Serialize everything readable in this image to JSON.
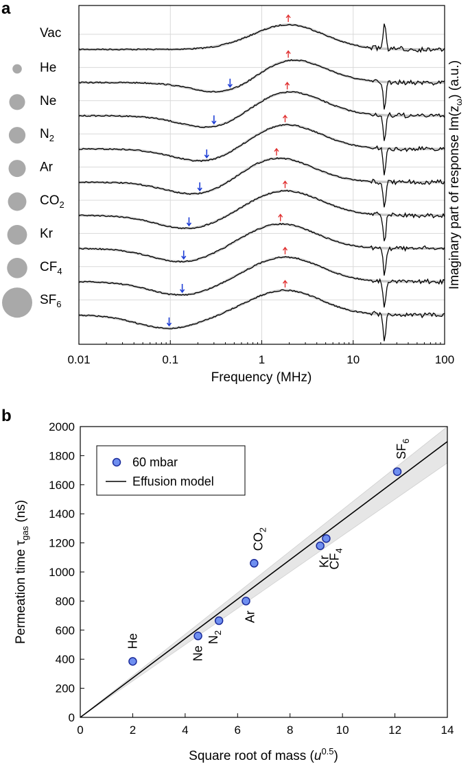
{
  "panel_a": {
    "letter": "a",
    "xlabel": "Frequency (MHz)",
    "ylabel_prefix": "Imaginary part of  response Im(z",
    "ylabel_sub": "ω",
    "ylabel_suffix": ") (a.u.)"
  },
  "panel_b": {
    "letter": "b",
    "xlabel_prefix": "Square root of mass (",
    "xlabel_unit": "u",
    "xlabel_exp": "0.5",
    "xlabel_suffix": ")",
    "ylabel_prefix": "Permeation time τ",
    "ylabel_sub": "gas",
    "ylabel_suffix": " (ns)",
    "legend": {
      "points": "60 mbar",
      "line": "Effusion model"
    }
  },
  "colors": {
    "trace": "#000000",
    "fit": "#c8c8c8",
    "blue_arrow": "#1f3fd6",
    "red_arrow": "#e03030",
    "marker_fill": "#6f8ff0",
    "marker_edge": "#1a2a9a",
    "circle": "#a9a9a9",
    "band": "#e6e6e6",
    "grid": "#d9d9d9"
  },
  "chart_data": [
    {
      "type": "line",
      "title": "",
      "xlabel": "Frequency (MHz)",
      "ylabel": "Imaginary part of response Im(z_ω) (a.u.)",
      "xscale": "log",
      "xlim": [
        0.01,
        100
      ],
      "xticks": [
        "0.01",
        "0.1",
        "1",
        "10",
        "100"
      ],
      "grid": true,
      "series": [
        {
          "name": "Vac",
          "label_main": "Vac",
          "label_sub": "",
          "blue_arrow_mhz": null,
          "red_arrow_mhz": 1.95
        },
        {
          "name": "He",
          "label_main": "He",
          "label_sub": "",
          "blue_arrow_mhz": 0.45,
          "red_arrow_mhz": 1.95
        },
        {
          "name": "Ne",
          "label_main": "Ne",
          "label_sub": "",
          "blue_arrow_mhz": 0.3,
          "red_arrow_mhz": 1.9
        },
        {
          "name": "N2",
          "label_main": "N",
          "label_sub": "2",
          "blue_arrow_mhz": 0.25,
          "red_arrow_mhz": 1.8
        },
        {
          "name": "Ar",
          "label_main": "Ar",
          "label_sub": "",
          "blue_arrow_mhz": 0.21,
          "red_arrow_mhz": 1.45
        },
        {
          "name": "CO2",
          "label_main": "CO",
          "label_sub": "2",
          "blue_arrow_mhz": 0.16,
          "red_arrow_mhz": 1.8
        },
        {
          "name": "Kr",
          "label_main": "Kr",
          "label_sub": "",
          "blue_arrow_mhz": 0.14,
          "red_arrow_mhz": 1.6
        },
        {
          "name": "CF4",
          "label_main": "CF",
          "label_sub": "4",
          "blue_arrow_mhz": 0.135,
          "red_arrow_mhz": 1.8
        },
        {
          "name": "SF6",
          "label_main": "SF",
          "label_sub": "6",
          "blue_arrow_mhz": 0.097,
          "red_arrow_mhz": 1.8
        }
      ],
      "circle_relative_size": [
        0.2,
        0.45,
        0.48,
        0.5,
        0.55,
        0.6,
        0.62,
        1.0
      ]
    },
    {
      "type": "scatter",
      "title": "",
      "xlabel": "Square root of mass (u^0.5)",
      "ylabel": "Permeation time τ_gas (ns)",
      "xlim": [
        0,
        14
      ],
      "ylim": [
        0,
        2000
      ],
      "xticks": [
        "0",
        "2",
        "4",
        "6",
        "8",
        "10",
        "12",
        "14"
      ],
      "yticks": [
        "0",
        "200",
        "400",
        "600",
        "800",
        "1000",
        "1200",
        "1400",
        "1600",
        "1800",
        "2000"
      ],
      "legend_position": "top-left",
      "series": [
        {
          "name": "60 mbar",
          "points": [
            {
              "label_main": "He",
              "label_sub": "",
              "x": 2.0,
              "y": 385
            },
            {
              "label_main": "Ne",
              "label_sub": "",
              "x": 4.49,
              "y": 560
            },
            {
              "label_main": "N",
              "label_sub": "2",
              "x": 5.29,
              "y": 665
            },
            {
              "label_main": "Ar",
              "label_sub": "",
              "x": 6.32,
              "y": 800
            },
            {
              "label_main": "CO",
              "label_sub": "2",
              "x": 6.63,
              "y": 1060
            },
            {
              "label_main": "Kr",
              "label_sub": "",
              "x": 9.15,
              "y": 1180
            },
            {
              "label_main": "CF",
              "label_sub": "4",
              "x": 9.38,
              "y": 1230
            },
            {
              "label_main": "SF",
              "label_sub": "6",
              "x": 12.09,
              "y": 1690
            }
          ]
        },
        {
          "name": "Effusion model",
          "slope": 135.5,
          "band_low_slope": 125,
          "band_high_slope": 146
        }
      ]
    }
  ]
}
